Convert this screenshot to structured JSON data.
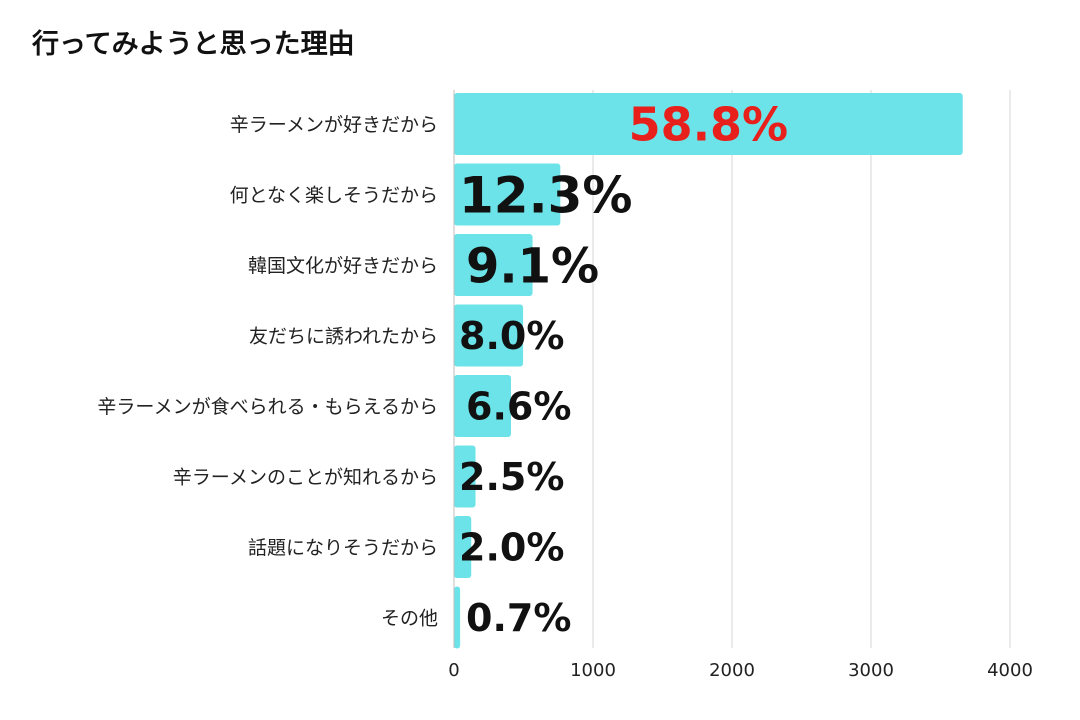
{
  "chart_data": {
    "type": "bar",
    "orientation": "horizontal",
    "title": "行ってみようと思った理由",
    "xlabel": "",
    "ylabel": "",
    "xlim": [
      0,
      4000
    ],
    "x_ticks": [
      "0",
      "1000",
      "2000",
      "3000",
      "4000"
    ],
    "grid": true,
    "bar_color": "#6ce3e8",
    "label_color": "#111111",
    "highlight_label_color": "#e8201c",
    "categories": [
      "辛ラーメンが好きだから",
      "何となく楽しそうだから",
      "韓国文化が好きだから",
      "友だちに誘われたから",
      "辛ラーメンが食べられる・もらえるから",
      "辛ラーメンのことが知れるから",
      "話題になりそうだから",
      "その他"
    ],
    "values": [
      3660,
      765,
      565,
      497,
      410,
      155,
      124,
      44
    ],
    "data_labels": [
      "58.8%",
      "12.3%",
      "9.1%",
      "8.0%",
      "6.6%",
      "2.5%",
      "2.0%",
      "0.7%"
    ]
  }
}
